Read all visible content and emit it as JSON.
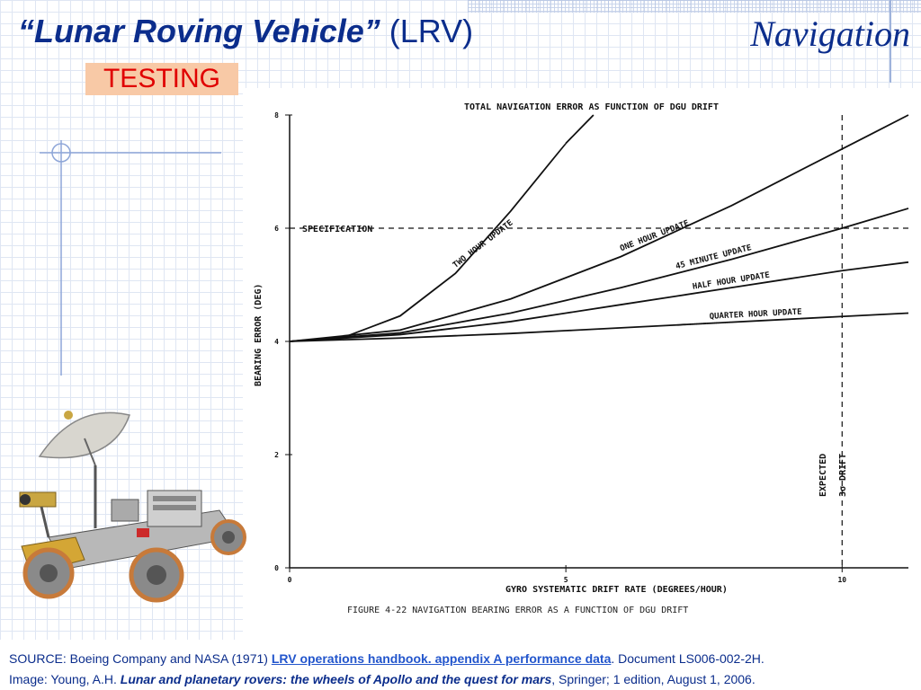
{
  "header": {
    "title_main": "“Lunar Roving Vehicle”",
    "title_abbr": "(LRV)",
    "section": "Navigation",
    "badge": "TESTING"
  },
  "chart_data": {
    "type": "line",
    "title": "TOTAL NAVIGATION ERROR AS FUNCTION OF DGU DRIFT",
    "caption": "FIGURE 4-22   NAVIGATION BEARING ERROR AS A FUNCTION OF DGU DRIFT",
    "xlabel": "GYRO SYSTEMATIC DRIFT RATE (DEGREES/HOUR)",
    "ylabel": "BEARING ERROR (DEG)",
    "xlim": [
      0,
      11.2
    ],
    "ylim": [
      0,
      8
    ],
    "xticks": [
      "0",
      "5",
      "10"
    ],
    "yticks": [
      "0",
      "2",
      "4",
      "6",
      "8"
    ],
    "grid": false,
    "reference_lines": [
      {
        "orientation": "horizontal",
        "value": 6,
        "label": "SPECIFICATION"
      },
      {
        "orientation": "vertical",
        "value": 10,
        "label1": "EXPECTED",
        "label2": "3σ DRIFT"
      }
    ],
    "series": [
      {
        "name": "TWO HOUR UPDATE",
        "x": [
          0,
          1,
          2,
          3,
          4,
          5,
          5.5
        ],
        "y": [
          4.0,
          4.08,
          4.45,
          5.2,
          6.3,
          7.5,
          8.0
        ]
      },
      {
        "name": "ONE HOUR UPDATE",
        "x": [
          0,
          2,
          4,
          6,
          8,
          10,
          11.2
        ],
        "y": [
          4.0,
          4.2,
          4.75,
          5.5,
          6.4,
          7.4,
          8.0
        ]
      },
      {
        "name": "45 MINUTE UPDATE",
        "x": [
          0,
          2,
          4,
          6,
          8,
          10,
          11.2
        ],
        "y": [
          4.0,
          4.15,
          4.5,
          4.95,
          5.45,
          6.0,
          6.35
        ]
      },
      {
        "name": "HALF HOUR UPDATE",
        "x": [
          0,
          2,
          4,
          6,
          8,
          10,
          11.2
        ],
        "y": [
          4.0,
          4.12,
          4.35,
          4.65,
          4.95,
          5.25,
          5.4
        ]
      },
      {
        "name": "QUARTER HOUR UPDATE",
        "x": [
          0,
          2,
          4,
          6,
          8,
          10,
          11.2
        ],
        "y": [
          4.0,
          4.06,
          4.14,
          4.24,
          4.34,
          4.44,
          4.5
        ]
      }
    ]
  },
  "footer": {
    "line1_prefix": "SOURCE: Boeing Company and NASA (1971) ",
    "line1_link": "LRV operations handbook. appendix A performance data",
    "line1_suffix": ". Document LS006-002-2H.",
    "line2_prefix": "Image: Young, A.H. ",
    "line2_title": "Lunar and planetary rovers: the wheels of Apollo and the quest for mars",
    "line2_suffix": ", Springer; 1 edition, August 1, 2006."
  },
  "colors": {
    "title_blue": "#0b2d8c",
    "badge_bg": "#f8c9a6",
    "badge_text": "#e00000",
    "link_blue": "#2255cc"
  }
}
